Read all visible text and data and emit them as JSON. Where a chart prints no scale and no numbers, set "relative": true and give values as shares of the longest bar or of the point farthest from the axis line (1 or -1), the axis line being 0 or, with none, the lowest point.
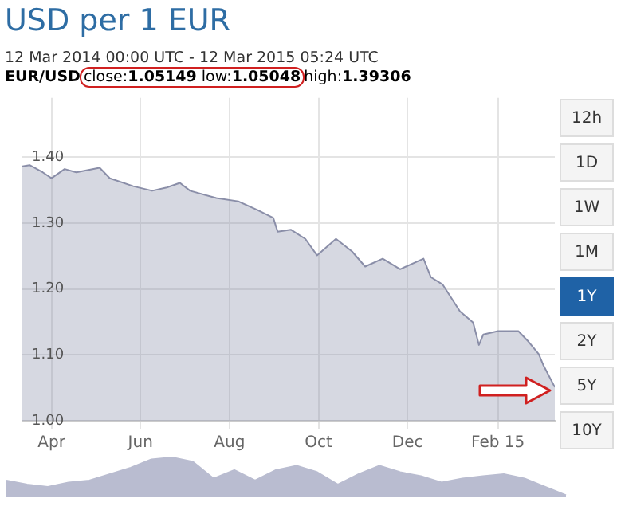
{
  "chart_data": [
    {
      "type": "area",
      "title": "USD per 1 EUR",
      "subtitle": "12 Mar 2014 00:00 UTC - 12 Mar 2015 05:24 UTC",
      "annotations": [
        "EUR/USD",
        "close:1.05149 low:1.05048",
        "high:1.39306",
        "12h",
        "1D",
        "1W",
        "1M",
        "1Y",
        "2Y",
        "5Y",
        "10Y"
      ],
      "x": [
        "2014-03-12",
        "2014-03-17",
        "2014-03-26",
        "2014-04-01",
        "2014-04-10",
        "2014-04-18",
        "2014-05-04",
        "2014-05-11",
        "2014-05-27",
        "2014-06-09",
        "2014-06-19",
        "2014-06-28",
        "2014-07-05",
        "2014-07-23",
        "2014-08-07",
        "2014-08-20",
        "2014-08-31",
        "2014-09-03",
        "2014-09-12",
        "2014-09-22",
        "2014-09-30",
        "2014-10-13",
        "2014-10-24",
        "2014-11-02",
        "2014-11-14",
        "2014-11-26",
        "2014-12-12",
        "2014-12-17",
        "2014-12-25",
        "2015-01-06",
        "2015-01-15",
        "2015-01-19",
        "2015-01-22",
        "2015-02-01",
        "2015-02-15",
        "2015-02-22",
        "2015-03-01",
        "2015-03-04",
        "2015-03-12"
      ],
      "values": [
        1.386,
        1.388,
        1.377,
        1.368,
        1.382,
        1.377,
        1.384,
        1.368,
        1.356,
        1.349,
        1.354,
        1.361,
        1.349,
        1.338,
        1.333,
        1.32,
        1.308,
        1.287,
        1.29,
        1.276,
        1.251,
        1.276,
        1.257,
        1.234,
        1.246,
        1.23,
        1.246,
        1.218,
        1.207,
        1.166,
        1.149,
        1.115,
        1.131,
        1.136,
        1.136,
        1.12,
        1.101,
        1.085,
        1.051
      ],
      "color": "#8a8ea8",
      "xlim": [
        "2014-03-12",
        "2015-03-12"
      ],
      "xticks": [
        {
          "value": "2014-04-01",
          "label": "Apr"
        },
        {
          "value": "2014-06-01",
          "label": "Jun"
        },
        {
          "value": "2014-08-01",
          "label": "Aug"
        },
        {
          "value": "2014-10-01",
          "label": "Oct"
        },
        {
          "value": "2014-12-01",
          "label": "Dec"
        },
        {
          "value": "2015-02-01",
          "label": "Feb 15"
        }
      ],
      "ylim": [
        1.0,
        1.49
      ],
      "yticks": [
        {
          "value": 1.0,
          "label": "1.00"
        },
        {
          "value": 1.1,
          "label": "1.10"
        },
        {
          "value": 1.2,
          "label": "1.20"
        },
        {
          "value": 1.3,
          "label": "1.30"
        },
        {
          "value": 1.4,
          "label": "1.40"
        }
      ],
      "grid": true,
      "legend": false
    },
    {
      "type": "area",
      "relative": true,
      "tick_labels": false,
      "color": "#b9bcd0",
      "categories": [
        null,
        null,
        null,
        null,
        null,
        null,
        null,
        null,
        null,
        null,
        null,
        null,
        null,
        null,
        null,
        null,
        null,
        null,
        null,
        null,
        null,
        null,
        null,
        null,
        null,
        null,
        null,
        null
      ],
      "values": [
        0.42,
        0.32,
        0.26,
        0.37,
        0.42,
        0.58,
        0.74,
        0.95,
        1,
        0.89,
        0.47,
        0.68,
        0.42,
        0.68,
        0.79,
        0.63,
        0.32,
        0.58,
        0.79,
        0.63,
        0.53,
        0.37,
        0.47,
        0.53,
        0.58,
        0.47,
        0.26,
        0.05
      ]
    }
  ]
}
